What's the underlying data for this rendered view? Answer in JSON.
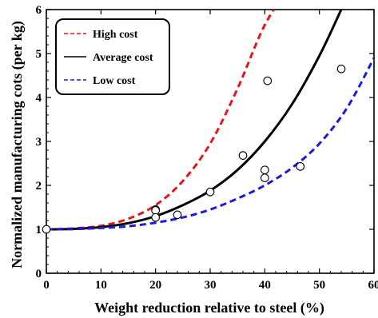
{
  "chart_data": {
    "type": "line",
    "xlabel": "Weight reduction relative to steel (%)",
    "ylabel": "Normalized  manufacturing  cots (per kg)",
    "xlim": [
      0,
      60
    ],
    "ylim": [
      0,
      6
    ],
    "xticks": [
      0,
      10,
      20,
      30,
      40,
      50,
      60
    ],
    "yticks": [
      0,
      1,
      2,
      3,
      4,
      5,
      6
    ],
    "legend_position": "top-left",
    "series": [
      {
        "name": "High cost",
        "style": "dashed",
        "color": "#e8141c",
        "x": [
          0,
          5,
          10,
          15,
          20,
          25,
          30,
          35,
          40,
          45
        ],
        "y": [
          1.0,
          1.02,
          1.08,
          1.24,
          1.55,
          2.1,
          2.95,
          4.2,
          5.65,
          6.6
        ]
      },
      {
        "name": "Average cost",
        "style": "solid",
        "color": "#000000",
        "x": [
          0,
          5,
          10,
          15,
          20,
          25,
          30,
          35,
          40,
          45,
          50,
          54
        ],
        "y": [
          1.0,
          1.01,
          1.05,
          1.14,
          1.3,
          1.55,
          1.88,
          2.35,
          3.0,
          3.85,
          4.95,
          6.0
        ]
      },
      {
        "name": "Low cost",
        "style": "dashed",
        "color": "#1a1ae0",
        "x": [
          0,
          5,
          10,
          15,
          20,
          25,
          30,
          35,
          40,
          45,
          50,
          55,
          60
        ],
        "y": [
          1.0,
          1.005,
          1.03,
          1.07,
          1.15,
          1.27,
          1.45,
          1.7,
          2.0,
          2.4,
          2.95,
          3.75,
          4.9
        ]
      },
      {
        "name": "",
        "style": "markers",
        "color": "#000000",
        "x": [
          0,
          20,
          20,
          20,
          24,
          30,
          36,
          40,
          40,
          40.5,
          46.5,
          54
        ],
        "y": [
          1.0,
          1.45,
          1.43,
          1.27,
          1.33,
          1.85,
          2.68,
          2.35,
          2.17,
          4.38,
          2.43,
          4.65
        ]
      }
    ]
  }
}
